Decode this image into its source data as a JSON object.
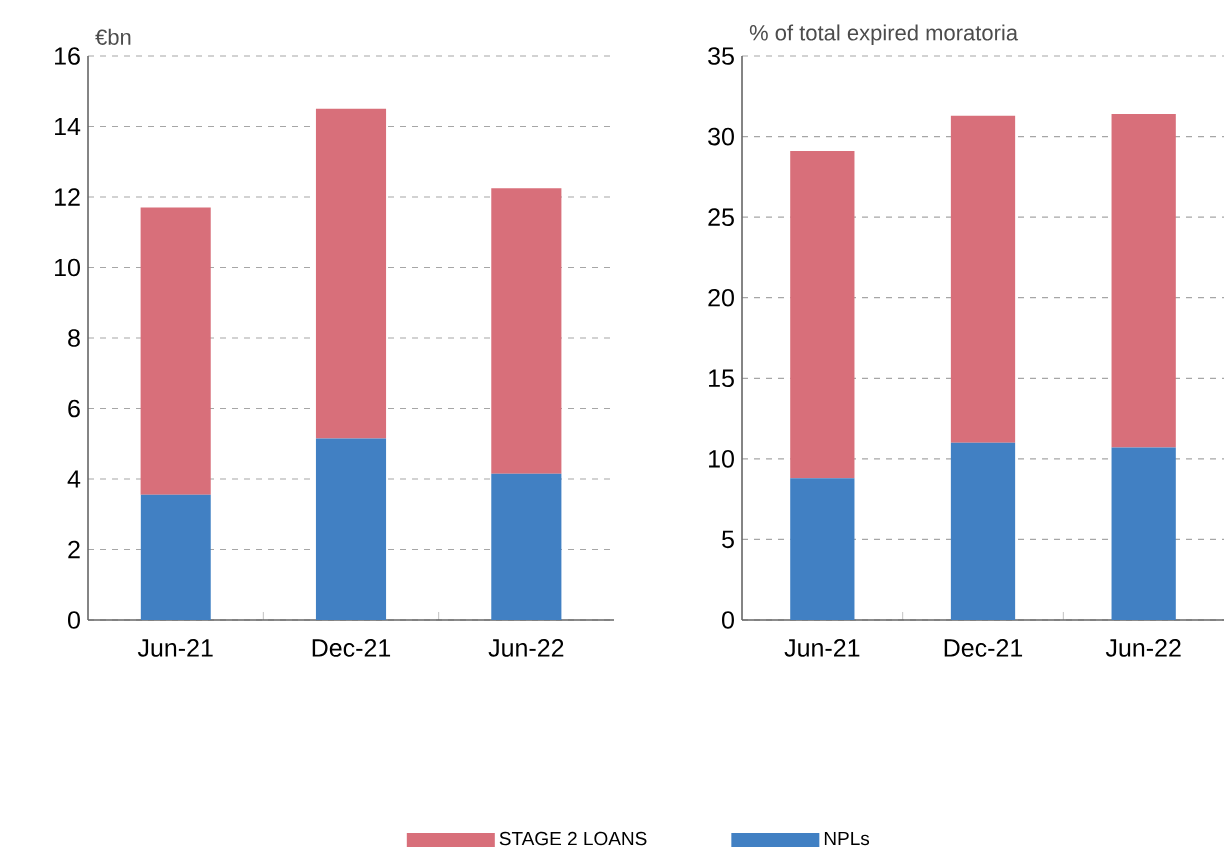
{
  "chart_data": [
    {
      "type": "bar",
      "stacked": true,
      "ylabel": "€bn",
      "categories": [
        "Jun-21",
        "Dec-21",
        "Jun-22"
      ],
      "ylim": [
        0,
        16
      ],
      "yticks": [
        0,
        2,
        4,
        6,
        8,
        10,
        12,
        14,
        16
      ],
      "grid": "y",
      "legend": "bottom",
      "series": [
        {
          "name": "NPLs",
          "color": "#4180c3",
          "values": [
            3.55,
            5.15,
            4.15
          ]
        },
        {
          "name": "STAGE 2 LOANS",
          "color": "#d86f7a",
          "values": [
            8.15,
            9.35,
            8.1
          ]
        }
      ]
    },
    {
      "type": "bar",
      "stacked": true,
      "ylabel": "% of total expired moratoria",
      "categories": [
        "Jun-21",
        "Dec-21",
        "Jun-22"
      ],
      "ylim": [
        0,
        35
      ],
      "yticks": [
        0,
        5,
        10,
        15,
        20,
        25,
        30,
        35
      ],
      "grid": "y",
      "series": [
        {
          "color": "#4180c3",
          "values": [
            8.8,
            11.0,
            10.7
          ]
        },
        {
          "color": "#d86f7a",
          "values": [
            20.3,
            20.3,
            20.7
          ]
        }
      ]
    }
  ]
}
